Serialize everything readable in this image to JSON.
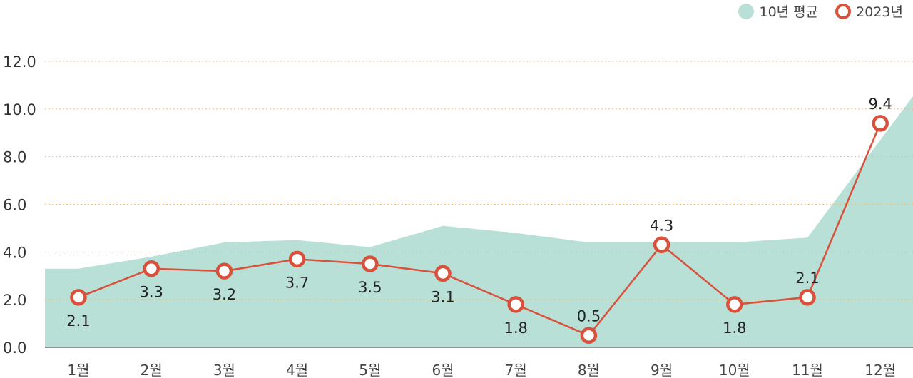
{
  "chart_data": {
    "type": "area",
    "categories": [
      "1월",
      "2월",
      "3월",
      "4월",
      "5월",
      "6월",
      "7월",
      "8월",
      "9월",
      "10월",
      "11월",
      "12월"
    ],
    "yticks": [
      "0.0",
      "2.0",
      "4.0",
      "6.0",
      "8.0",
      "10.0",
      "12.0"
    ],
    "ylim": [
      0,
      12
    ],
    "grid": true,
    "legend_position": "top-right",
    "series": [
      {
        "name": "10년 평균",
        "style": "area",
        "color": "#b8e0d6",
        "values": [
          3.3,
          3.8,
          4.4,
          4.5,
          4.2,
          5.1,
          4.8,
          4.4,
          4.4,
          4.4,
          4.6,
          8.7
        ]
      },
      {
        "name": "2023년",
        "style": "line-markers",
        "color": "#d9503b",
        "values": [
          2.1,
          3.3,
          3.2,
          3.7,
          3.5,
          3.1,
          1.8,
          0.5,
          4.3,
          1.8,
          2.1,
          9.4
        ],
        "labels": [
          "2.1",
          "3.3",
          "3.2",
          "3.7",
          "3.5",
          "3.1",
          "1.8",
          "0.5",
          "4.3",
          "1.8",
          "2.1",
          "9.4"
        ]
      }
    ]
  }
}
